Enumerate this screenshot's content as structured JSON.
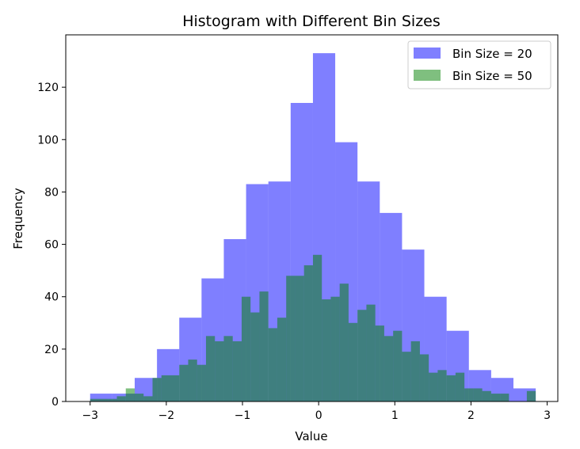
{
  "chart_data": {
    "type": "bar",
    "title": "Histogram with Different Bin Sizes",
    "xlabel": "Value",
    "ylabel": "Frequency",
    "xlim": [
      -3.32,
      3.14
    ],
    "ylim": [
      0,
      140
    ],
    "xticks": [
      -3,
      -2,
      -1,
      0,
      1,
      2,
      3
    ],
    "yticks": [
      0,
      20,
      40,
      60,
      80,
      100,
      120
    ],
    "grid": false,
    "legend_position": "upper right",
    "series": [
      {
        "name": "Bin Size = 20",
        "color": "#0000ff",
        "alpha": 0.5,
        "bin_start": -3.0,
        "bin_width": 0.2925,
        "values": [
          3,
          3,
          9,
          20,
          32,
          47,
          62,
          83,
          84,
          114,
          133,
          99,
          84,
          72,
          58,
          40,
          27,
          12,
          9,
          5
        ]
      },
      {
        "name": "Bin Size = 50",
        "color": "#008000",
        "alpha": 0.5,
        "bin_start": -3.0,
        "bin_width": 0.117,
        "values": [
          1,
          1,
          1,
          2,
          5,
          3,
          2,
          9,
          10,
          10,
          14,
          16,
          14,
          25,
          23,
          25,
          23,
          40,
          34,
          42,
          28,
          32,
          48,
          48,
          52,
          56,
          39,
          40,
          45,
          30,
          35,
          37,
          29,
          25,
          27,
          19,
          23,
          18,
          11,
          12,
          10,
          11,
          5,
          5,
          4,
          3,
          3,
          0,
          0,
          4
        ]
      }
    ]
  }
}
